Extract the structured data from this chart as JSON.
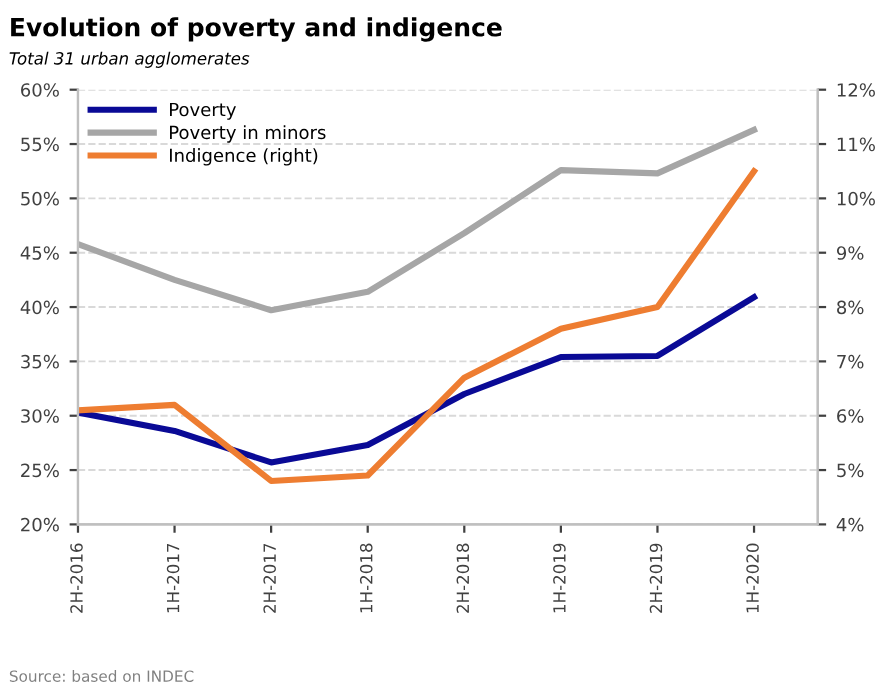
{
  "chart_data": {
    "type": "line",
    "title": "Evolution of poverty and indigence",
    "subtitle": "Total 31 urban agglomerates",
    "categories": [
      "2H-2016",
      "1H-2017",
      "2H-2017",
      "1H-2018",
      "2H-2018",
      "1H-2019",
      "2H-2019",
      "1H-2020"
    ],
    "series": [
      {
        "name": "Poverty",
        "color": "#0a0a96",
        "values": [
          30.3,
          28.6,
          25.7,
          27.3,
          32.0,
          35.4,
          35.5,
          40.9
        ]
      },
      {
        "name": "Poverty in minors",
        "color": "#a6a6a6",
        "values": [
          45.8,
          42.5,
          39.7,
          41.4,
          46.8,
          52.6,
          52.3,
          56.3
        ]
      },
      {
        "name": "Indigence (right)",
        "color": "#ee7d31",
        "axis": "y2",
        "values": [
          6.1,
          6.2,
          4.8,
          4.9,
          6.7,
          7.6,
          8.0,
          10.5
        ]
      }
    ],
    "ylim": [
      20,
      60
    ],
    "yticks": [
      {
        "value": 20,
        "label": "20%"
      },
      {
        "value": 25,
        "label": "25%"
      },
      {
        "value": 30,
        "label": "30%"
      },
      {
        "value": 35,
        "label": "35%"
      },
      {
        "value": 40,
        "label": "40%"
      },
      {
        "value": 45,
        "label": "45%"
      },
      {
        "value": 50,
        "label": "50%"
      },
      {
        "value": 55,
        "label": "55%"
      },
      {
        "value": 60,
        "label": "60%"
      }
    ],
    "y2lim": [
      4,
      12
    ],
    "y2ticks": [
      {
        "value": 4,
        "label": "4%"
      },
      {
        "value": 5,
        "label": "5%"
      },
      {
        "value": 6,
        "label": "6%"
      },
      {
        "value": 7,
        "label": "7%"
      },
      {
        "value": 8,
        "label": "8%"
      },
      {
        "value": 9,
        "label": "9%"
      },
      {
        "value": 10,
        "label": "10%"
      },
      {
        "value": 11,
        "label": "11%"
      },
      {
        "value": 12,
        "label": "12%"
      }
    ],
    "grid": "y",
    "legend": "top left",
    "marker": "none",
    "line_style": "solid",
    "annotations": [
      "Source: based on INDEC"
    ]
  }
}
